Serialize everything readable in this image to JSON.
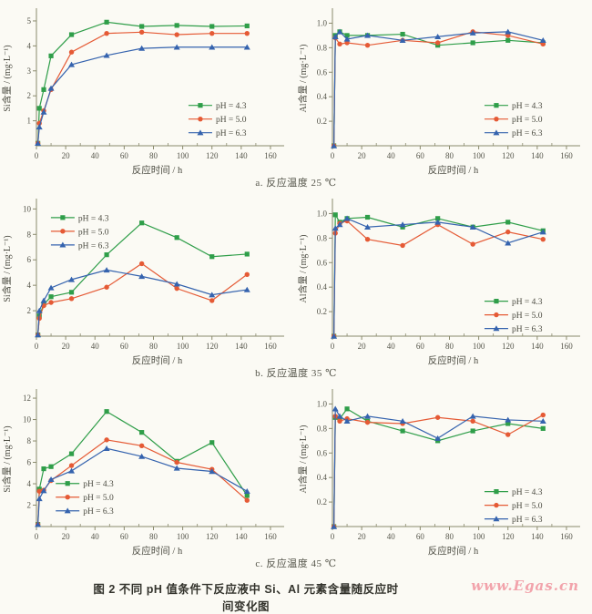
{
  "figure": {
    "caption": "图 2  不同 pH 值条件下反应液中 Si、Al 元素含量随反应时间变化图",
    "watermark": "www.Egas.cn",
    "row_captions": [
      "a. 反应温度 25 ℃",
      "b. 反应温度 35 ℃",
      "c. 反应温度 45 ℃"
    ]
  },
  "colors": {
    "ph43": "#2f9e49",
    "ph50": "#e55a35",
    "ph63": "#3563ae",
    "axis": "#8a8a6d",
    "tick_text": "#55554a",
    "label_text": "#4c4c42"
  },
  "chart_data": [
    {
      "id": "si-25c",
      "type": "line",
      "xlabel": "反应时间 / h",
      "ylabel": "Si含量 / (mg·L⁻¹)",
      "xlim": [
        0,
        165
      ],
      "ylim": [
        0,
        5.4
      ],
      "xticks": [
        0,
        20,
        40,
        60,
        80,
        100,
        120,
        140,
        160
      ],
      "xtick_labels": [
        "0",
        "20",
        "40",
        "60",
        "80",
        "100",
        "120",
        "140",
        "160"
      ],
      "yticks": [
        1,
        2,
        3,
        4,
        5
      ],
      "ytick_labels": [
        "1",
        "2",
        "3",
        "4",
        "5"
      ],
      "legend_pos": [
        0.63,
        0.66
      ],
      "x": [
        1,
        2,
        5,
        10,
        24,
        48,
        72,
        96,
        120,
        144
      ],
      "series": [
        {
          "name": "pH = 4.3",
          "marker": "square",
          "color_key": "ph43",
          "values": [
            0.1,
            1.5,
            2.25,
            3.6,
            4.45,
            4.95,
            4.78,
            4.82,
            4.78,
            4.8
          ]
        },
        {
          "name": "pH = 5.0",
          "marker": "circle",
          "color_key": "ph50",
          "values": [
            0.1,
            0.9,
            1.4,
            2.25,
            3.75,
            4.5,
            4.55,
            4.45,
            4.5,
            4.5
          ]
        },
        {
          "name": "pH = 6.3",
          "marker": "triangle",
          "color_key": "ph63",
          "values": [
            0.1,
            0.75,
            1.35,
            2.3,
            3.25,
            3.62,
            3.9,
            3.95,
            3.95,
            3.95
          ]
        }
      ]
    },
    {
      "id": "al-25c",
      "type": "line",
      "xlabel": "反应时间 / h",
      "ylabel": "Al含量 / (mg·L⁻¹)",
      "xlim": [
        0,
        165
      ],
      "ylim": [
        0,
        1.1
      ],
      "xticks": [
        0,
        20,
        40,
        60,
        80,
        100,
        120,
        140,
        160
      ],
      "xtick_labels": [
        "0",
        "20",
        "40",
        "60",
        "80",
        "100",
        "120",
        "140",
        "160"
      ],
      "yticks": [
        0.2,
        0.4,
        0.6,
        0.8,
        1.0
      ],
      "ytick_labels": [
        "0.2",
        "0.4",
        "0.6",
        "0.8",
        "1.0"
      ],
      "legend_pos": [
        0.63,
        0.66
      ],
      "x": [
        1,
        2,
        5,
        10,
        24,
        48,
        72,
        96,
        120,
        144
      ],
      "series": [
        {
          "name": "pH = 4.3",
          "marker": "square",
          "color_key": "ph43",
          "values": [
            0,
            0.9,
            0.93,
            0.9,
            0.9,
            0.91,
            0.82,
            0.84,
            0.86,
            0.84
          ]
        },
        {
          "name": "pH = 5.0",
          "marker": "circle",
          "color_key": "ph50",
          "values": [
            0,
            0.88,
            0.83,
            0.84,
            0.82,
            0.86,
            0.84,
            0.93,
            0.9,
            0.83
          ]
        },
        {
          "name": "pH = 6.3",
          "marker": "triangle",
          "color_key": "ph63",
          "values": [
            0,
            0.89,
            0.93,
            0.87,
            0.9,
            0.86,
            0.89,
            0.92,
            0.93,
            0.86
          ]
        }
      ]
    },
    {
      "id": "si-35c",
      "type": "line",
      "xlabel": "反应时间 / h",
      "ylabel": "Si含量 / (mg·L⁻¹)",
      "xlim": [
        0,
        165
      ],
      "ylim": [
        0,
        10.6
      ],
      "xticks": [
        0,
        20,
        40,
        60,
        80,
        100,
        120,
        140,
        160
      ],
      "xtick_labels": [
        "0",
        "20",
        "40",
        "60",
        "80",
        "100",
        "120",
        "140",
        "160"
      ],
      "yticks": [
        2,
        4,
        6,
        8,
        10
      ],
      "ytick_labels": [
        "2",
        "4",
        "6",
        "8",
        "10"
      ],
      "legend_pos": [
        0.06,
        0.08
      ],
      "x": [
        1,
        2,
        5,
        10,
        24,
        48,
        72,
        96,
        120,
        144
      ],
      "series": [
        {
          "name": "pH = 4.3",
          "marker": "square",
          "color_key": "ph43",
          "values": [
            0.1,
            1.6,
            2.5,
            3.1,
            3.45,
            6.4,
            8.9,
            7.75,
            6.25,
            6.45
          ]
        },
        {
          "name": "pH = 5.0",
          "marker": "circle",
          "color_key": "ph50",
          "values": [
            0.1,
            1.4,
            2.4,
            2.65,
            2.95,
            3.85,
            5.7,
            3.75,
            2.8,
            4.85
          ]
        },
        {
          "name": "pH = 6.3",
          "marker": "triangle",
          "color_key": "ph63",
          "values": [
            0.1,
            2.0,
            2.8,
            3.8,
            4.45,
            5.2,
            4.7,
            4.1,
            3.25,
            3.65
          ]
        }
      ]
    },
    {
      "id": "al-35c",
      "type": "line",
      "xlabel": "反应时间 / h",
      "ylabel": "Al含量 / (mg·L⁻¹)",
      "xlim": [
        0,
        165
      ],
      "ylim": [
        0,
        1.1
      ],
      "xticks": [
        0,
        20,
        40,
        60,
        80,
        100,
        120,
        140,
        160
      ],
      "xtick_labels": [
        "0",
        "20",
        "40",
        "60",
        "80",
        "100",
        "120",
        "140",
        "160"
      ],
      "yticks": [
        0.2,
        0.4,
        0.6,
        0.8,
        1.0
      ],
      "ytick_labels": [
        "0.2",
        "0.4",
        "0.6",
        "0.8",
        "1.0"
      ],
      "legend_pos": [
        0.63,
        0.7
      ],
      "x": [
        1,
        2,
        5,
        10,
        24,
        48,
        72,
        96,
        120,
        144
      ],
      "series": [
        {
          "name": "pH = 4.3",
          "marker": "square",
          "color_key": "ph43",
          "values": [
            0,
            0.99,
            0.93,
            0.96,
            0.97,
            0.89,
            0.96,
            0.89,
            0.93,
            0.86
          ]
        },
        {
          "name": "pH = 5.0",
          "marker": "circle",
          "color_key": "ph50",
          "values": [
            0,
            0.84,
            0.92,
            0.94,
            0.79,
            0.74,
            0.91,
            0.75,
            0.85,
            0.79
          ]
        },
        {
          "name": "pH = 6.3",
          "marker": "triangle",
          "color_key": "ph63",
          "values": [
            0,
            0.88,
            0.91,
            0.96,
            0.89,
            0.91,
            0.93,
            0.89,
            0.76,
            0.85
          ]
        }
      ]
    },
    {
      "id": "si-45c",
      "type": "line",
      "xlabel": "反应时间 / h",
      "ylabel": "Si含量 / (mg·L⁻¹)",
      "xlim": [
        0,
        165
      ],
      "ylim": [
        0,
        12.6
      ],
      "xticks": [
        0,
        20,
        40,
        60,
        80,
        100,
        120,
        140,
        160
      ],
      "xtick_labels": [
        "0",
        "20",
        "40",
        "60",
        "80",
        "100",
        "120",
        "140",
        "160"
      ],
      "yticks": [
        2,
        4,
        6,
        8,
        10,
        12
      ],
      "ytick_labels": [
        "2",
        "4",
        "6",
        "8",
        "10",
        "12"
      ],
      "legend_pos": [
        0.08,
        0.64
      ],
      "x": [
        1,
        2,
        5,
        10,
        24,
        48,
        72,
        96,
        120,
        144
      ],
      "series": [
        {
          "name": "pH = 4.3",
          "marker": "square",
          "color_key": "ph43",
          "values": [
            0.2,
            3.5,
            5.4,
            5.6,
            6.8,
            10.75,
            8.8,
            6.1,
            7.85,
            2.9
          ]
        },
        {
          "name": "pH = 5.0",
          "marker": "circle",
          "color_key": "ph50",
          "values": [
            0.2,
            3.3,
            3.4,
            4.3,
            5.7,
            8.1,
            7.55,
            6.0,
            5.35,
            2.45
          ]
        },
        {
          "name": "pH = 6.3",
          "marker": "triangle",
          "color_key": "ph63",
          "values": [
            0.2,
            2.6,
            3.35,
            4.4,
            5.2,
            7.3,
            6.55,
            5.45,
            5.15,
            3.3
          ]
        }
      ]
    },
    {
      "id": "al-45c",
      "type": "line",
      "xlabel": "反应时间 / h",
      "ylabel": "Al含量 / (mg·L⁻¹)",
      "xlim": [
        0,
        165
      ],
      "ylim": [
        0,
        1.1
      ],
      "xticks": [
        0,
        20,
        40,
        60,
        80,
        100,
        120,
        140,
        160
      ],
      "xtick_labels": [
        "0",
        "20",
        "40",
        "60",
        "80",
        "100",
        "120",
        "140",
        "160"
      ],
      "yticks": [
        0.2,
        0.4,
        0.6,
        0.8,
        1.0
      ],
      "ytick_labels": [
        "0.2",
        "0.4",
        "0.6",
        "0.8",
        "1.0"
      ],
      "legend_pos": [
        0.63,
        0.7
      ],
      "x": [
        1,
        2,
        5,
        10,
        24,
        48,
        72,
        96,
        120,
        144
      ],
      "series": [
        {
          "name": "pH = 4.3",
          "marker": "square",
          "color_key": "ph43",
          "values": [
            0,
            0.89,
            0.88,
            0.96,
            0.86,
            0.78,
            0.7,
            0.78,
            0.84,
            0.8
          ]
        },
        {
          "name": "pH = 5.0",
          "marker": "circle",
          "color_key": "ph50",
          "values": [
            0,
            0.9,
            0.86,
            0.88,
            0.85,
            0.84,
            0.89,
            0.86,
            0.75,
            0.91
          ]
        },
        {
          "name": "pH = 6.3",
          "marker": "triangle",
          "color_key": "ph63",
          "values": [
            0,
            0.96,
            0.9,
            0.86,
            0.9,
            0.86,
            0.72,
            0.9,
            0.87,
            0.86
          ]
        }
      ]
    }
  ]
}
